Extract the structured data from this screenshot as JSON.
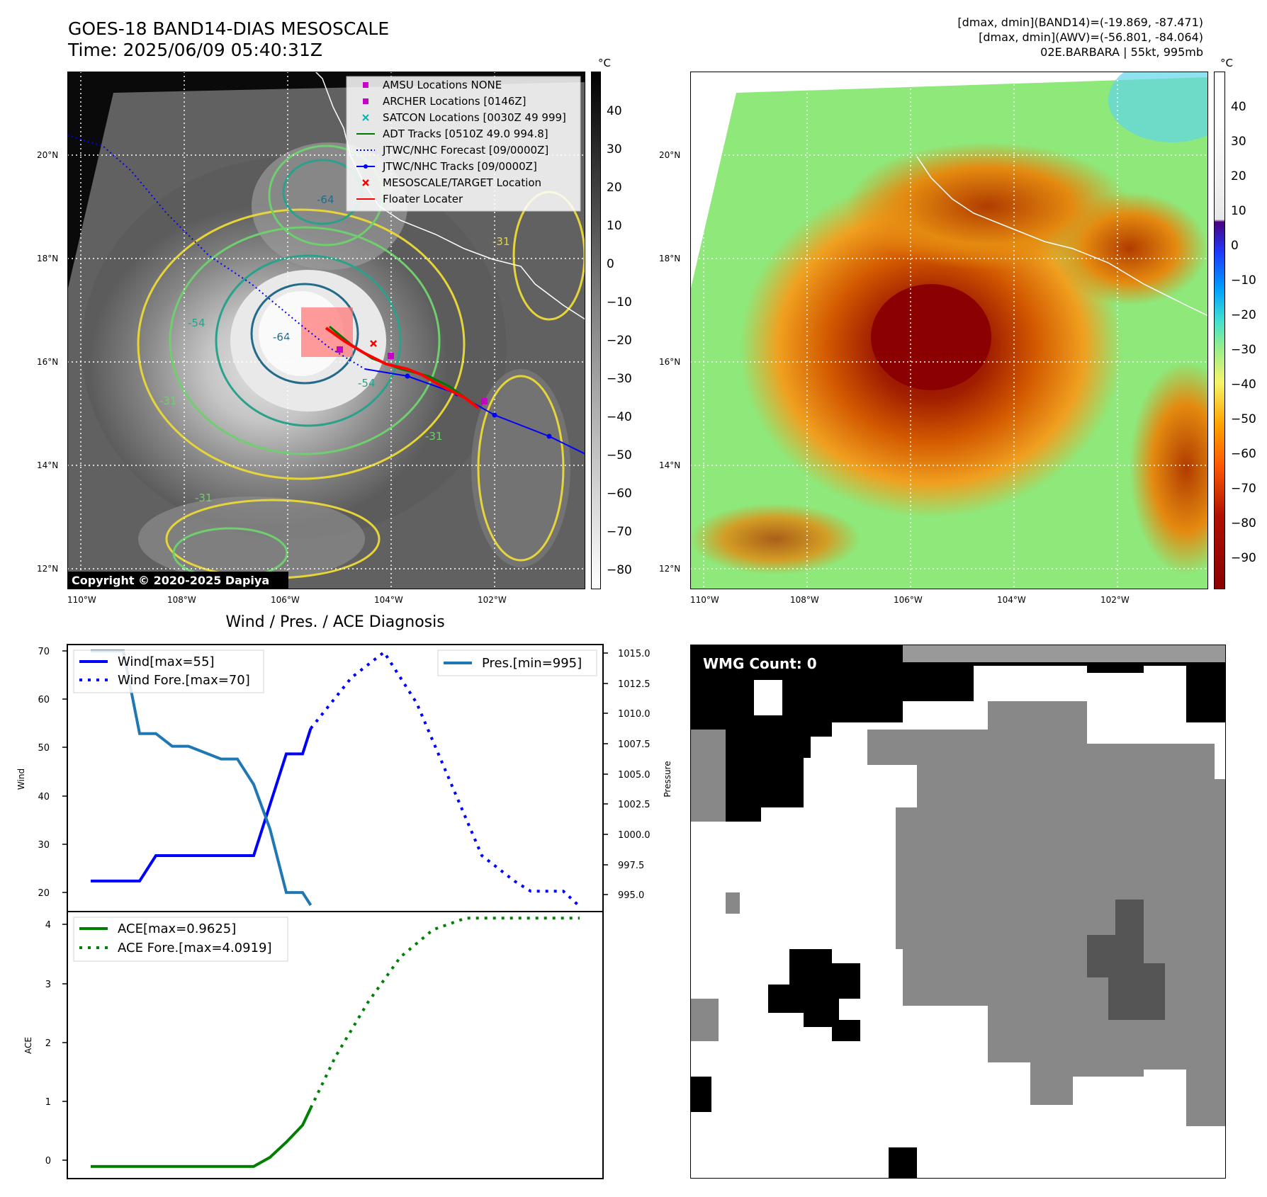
{
  "header": {
    "title_line1": "GOES-18 BAND14-DIAS MESOSCALE",
    "title_line2": "Time: 2025/06/09 05:40:31Z",
    "info_line1": "[dmax, dmin](BAND14)=(-19.869, -87.471)",
    "info_line2": "[dmax, dmin](AWV)=(-56.801, -84.064)",
    "info_line3": "02E.BARBARA | 55kt, 995mb"
  },
  "map_common": {
    "lon_ticks": [
      "110°W",
      "108°W",
      "106°W",
      "104°W",
      "102°W"
    ],
    "lat_ticks": [
      "20°N",
      "18°N",
      "16°N",
      "14°N",
      "12°N"
    ]
  },
  "ir_panel": {
    "colorbar_unit": "°C",
    "colorbar_ticks": [
      "40",
      "30",
      "20",
      "10",
      "0",
      "−10",
      "−20",
      "−30",
      "−40",
      "−50",
      "−60",
      "−70",
      "−80"
    ],
    "contour_labels": [
      "-64",
      "-54",
      "-64",
      "-54",
      "-31",
      "-31",
      "-31",
      "-31"
    ],
    "copyright": "Copyright © 2020-2025 Dapiya",
    "legend": [
      {
        "label": "AMSU Locations NONE",
        "color": "#c800c8",
        "marker": "square"
      },
      {
        "label": "ARCHER Locations [0146Z]",
        "color": "#c800c8",
        "marker": "square"
      },
      {
        "label": "SATCON Locations [0030Z 49 999]",
        "color": "#00b4b4",
        "marker": "x"
      },
      {
        "label": "ADT Tracks [0510Z 49.0 994.8]",
        "color": "#007800",
        "marker": "line"
      },
      {
        "label": "JTWC/NHC Forecast [09/0000Z]",
        "color": "#0000ff",
        "marker": "dotted"
      },
      {
        "label": "JTWC/NHC Tracks [09/0000Z]",
        "color": "#0000ff",
        "marker": "line-dot"
      },
      {
        "label": "MESOSCALE/TARGET Location",
        "color": "#ff0000",
        "marker": "x"
      },
      {
        "label": "Floater Locater",
        "color": "#ff0000",
        "marker": "line"
      }
    ]
  },
  "wv_panel": {
    "colorbar_unit": "°C",
    "colorbar_ticks": [
      "40",
      "30",
      "20",
      "10",
      "0",
      "−10",
      "−20",
      "−30",
      "−40",
      "−50",
      "−60",
      "−70",
      "−80",
      "−90"
    ]
  },
  "diagnosis_title": "Wind / Pres. / ACE Diagnosis",
  "chart_data": [
    {
      "type": "line",
      "title": "Wind / Pres. / ACE Diagnosis",
      "ylabel": "Wind",
      "y2label": "Pressure",
      "ylim": [
        19,
        71.5
      ],
      "y2lim": [
        994.5,
        1015.5
      ],
      "yticks": [
        "70",
        "60",
        "50",
        "40",
        "30",
        "20"
      ],
      "y2ticks": [
        "1015.0",
        "1012.5",
        "1010.0",
        "1007.5",
        "1005.0",
        "1002.5",
        "1000.0",
        "997.5",
        "995.0"
      ],
      "x_index_range": [
        0,
        30
      ],
      "series": [
        {
          "name": "Wind[max=55]",
          "style": "solid",
          "color": "#0000ff",
          "axis": "left",
          "x": [
            0,
            3,
            4,
            5,
            9,
            10,
            11,
            12,
            13,
            13.5
          ],
          "values": [
            25,
            25,
            30,
            30,
            30,
            30,
            40,
            50,
            50,
            55
          ]
        },
        {
          "name": "Wind Fore.[max=70]",
          "style": "dotted",
          "color": "#0000ff",
          "axis": "left",
          "x": [
            13.5,
            16,
            18,
            20,
            22,
            24,
            26,
            27,
            28,
            29,
            30
          ],
          "values": [
            55,
            65,
            70,
            60,
            45,
            30,
            25,
            23,
            23,
            23,
            20
          ]
        },
        {
          "name": "Pres.[min=995]",
          "style": "solid",
          "color": "#1f77b4",
          "axis": "right",
          "x": [
            0,
            2,
            3,
            4,
            5,
            6,
            7,
            8,
            9,
            10,
            11,
            12,
            13,
            13.5
          ],
          "values": [
            1015,
            1015,
            1008.5,
            1008.5,
            1007.5,
            1007.5,
            1007,
            1006.5,
            1006.5,
            1004.5,
            1001,
            996,
            996,
            995
          ]
        }
      ]
    },
    {
      "type": "line",
      "ylabel": "ACE",
      "ylim": [
        -0.2,
        4.2
      ],
      "yticks": [
        "4",
        "3",
        "2",
        "1",
        "0"
      ],
      "x_index_range": [
        0,
        30
      ],
      "series": [
        {
          "name": "ACE[max=0.9625]",
          "style": "solid",
          "color": "#008000",
          "x": [
            0,
            10,
            11,
            12,
            13,
            13.5
          ],
          "values": [
            0,
            0,
            0.15,
            0.4,
            0.68,
            0.9625
          ]
        },
        {
          "name": "ACE Fore.[max=4.0919]",
          "style": "dotted",
          "color": "#008000",
          "x": [
            13.5,
            15,
            17,
            19,
            21,
            23,
            25,
            27,
            29,
            30
          ],
          "values": [
            0.9625,
            1.8,
            2.7,
            3.45,
            3.9,
            4.0919,
            4.0919,
            4.0919,
            4.0919,
            4.0919
          ]
        }
      ]
    }
  ],
  "wmg_panel": {
    "label": "WMG Count: 0"
  }
}
